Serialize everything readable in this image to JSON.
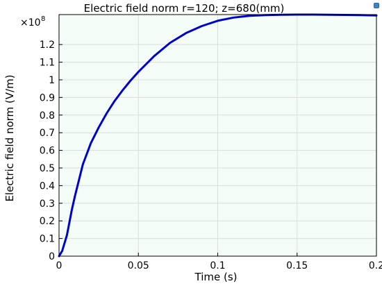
{
  "chart_data": {
    "type": "line",
    "title": "Electric field norm r=120; z=680(mm)",
    "xlabel": "Time (s)",
    "ylabel": "Electric field norm (V/m)",
    "y_multiplier": "×10",
    "y_exponent": "8",
    "xlim": [
      0,
      0.2
    ],
    "ylim": [
      0,
      1.37
    ],
    "xticks": [
      0,
      0.05,
      0.1,
      0.15,
      0.2
    ],
    "xtick_labels": [
      "0",
      "0.05",
      "0.1",
      "0.15",
      "0.2"
    ],
    "yticks": [
      0,
      0.1,
      0.2,
      0.3,
      0.4,
      0.5,
      0.6,
      0.7,
      0.8,
      0.9,
      1,
      1.1,
      1.2
    ],
    "ytick_labels": [
      "0",
      "0.1",
      "0.2",
      "0.3",
      "0.4",
      "0.5",
      "0.6",
      "0.7",
      "0.8",
      "0.9",
      "1",
      "1.1",
      "1.2"
    ],
    "grid": true,
    "line_color": "#0000cc",
    "plot_bg": "#f4fcf8",
    "series": [
      {
        "x": [
          0,
          0.002,
          0.005,
          0.008,
          0.01,
          0.015,
          0.02,
          0.025,
          0.03,
          0.035,
          0.04,
          0.045,
          0.05,
          0.06,
          0.07,
          0.08,
          0.09,
          0.1,
          0.11,
          0.12,
          0.13,
          0.14,
          0.15,
          0.16,
          0.17,
          0.18,
          0.19,
          0.2
        ],
        "values": [
          0,
          0.03,
          0.12,
          0.26,
          0.34,
          0.52,
          0.64,
          0.73,
          0.81,
          0.88,
          0.94,
          0.995,
          1.045,
          1.135,
          1.21,
          1.265,
          1.305,
          1.335,
          1.353,
          1.363,
          1.367,
          1.369,
          1.37,
          1.37,
          1.369,
          1.368,
          1.367,
          1.365
        ]
      }
    ]
  },
  "toolbar": {
    "corner_icon": "window-menu-icon"
  }
}
